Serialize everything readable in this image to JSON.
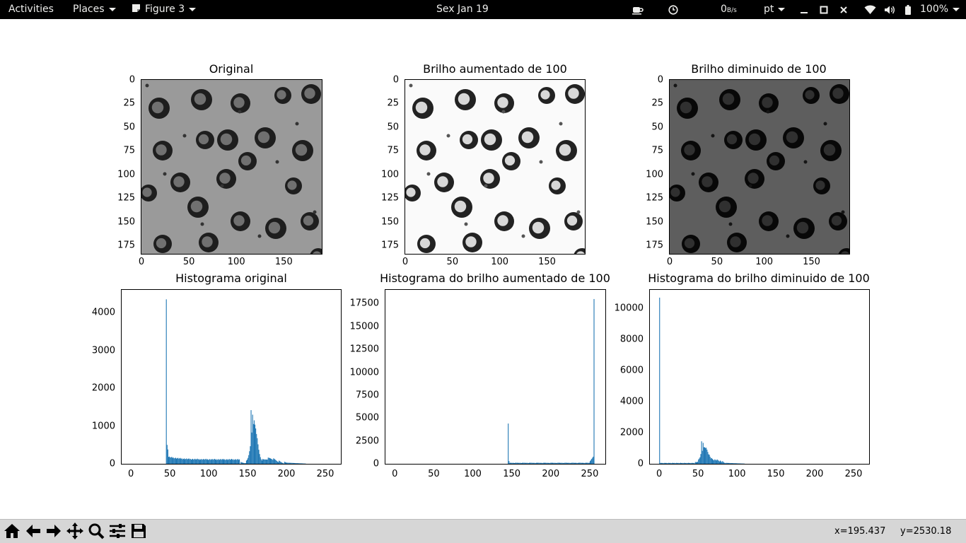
{
  "topbar": {
    "activities": "Activities",
    "places": "Places",
    "app_menu": "Figure 3",
    "clock": "Sex Jan 19",
    "net_speed": "0",
    "net_unit": "B/s",
    "keyboard": "pt",
    "battery": "100%",
    "icons": [
      "coffee-icon",
      "clock-icon",
      "minimize-icon",
      "maximize-icon",
      "close-icon",
      "wifi-icon",
      "volume-icon",
      "battery-icon"
    ]
  },
  "panels": {
    "original": {
      "title": "Original"
    },
    "bright": {
      "title": "Brilho aumentado de 100"
    },
    "dark": {
      "title": "Brilho diminuido de 100"
    },
    "hist_original": {
      "title": "Histograma original"
    },
    "hist_bright": {
      "title": "Histograma do brilho aumentado de 100"
    },
    "hist_dark": {
      "title": "Histograma do brilho diminuido de 100"
    }
  },
  "image_axes": {
    "x_ticks": [
      "0",
      "50",
      "100",
      "150"
    ],
    "y_ticks": [
      "0",
      "25",
      "50",
      "75",
      "100",
      "125",
      "150",
      "175"
    ]
  },
  "hist_axes": {
    "x_ticks": [
      "0",
      "50",
      "100",
      "150",
      "200",
      "250"
    ],
    "original_y_ticks": [
      "0",
      "1000",
      "2000",
      "3000",
      "4000"
    ],
    "bright_y_ticks": [
      "0",
      "2500",
      "5000",
      "7500",
      "10000",
      "12500",
      "15000",
      "17500"
    ],
    "dark_y_ticks": [
      "0",
      "2000",
      "4000",
      "6000",
      "8000",
      "10000"
    ]
  },
  "chart_data": [
    {
      "type": "bar",
      "title": "Histograma original",
      "xlim": [
        -12,
        270
      ],
      "ylim": [
        0,
        4600
      ],
      "peaks": [
        [
          45,
          4350
        ],
        [
          47,
          500
        ],
        [
          154,
          1420
        ],
        [
          160,
          1100
        ],
        [
          175,
          200
        ]
      ],
      "color": "#1f77b4"
    },
    {
      "type": "bar",
      "title": "Histograma do brilho aumentado de 100",
      "xlim": [
        -12,
        270
      ],
      "ylim": [
        0,
        19000
      ],
      "peaks": [
        [
          145,
          4400
        ],
        [
          147,
          600
        ],
        [
          254,
          600
        ],
        [
          255,
          18000
        ]
      ],
      "color": "#1f77b4"
    },
    {
      "type": "bar",
      "title": "Histograma do brilho diminuido de 100",
      "xlim": [
        -12,
        270
      ],
      "ylim": [
        0,
        11200
      ],
      "peaks": [
        [
          0,
          10700
        ],
        [
          54,
          1450
        ],
        [
          60,
          1100
        ],
        [
          75,
          200
        ]
      ],
      "color": "#1f77b4"
    }
  ],
  "toolbar": {
    "buttons": [
      "home-icon",
      "back-icon",
      "forward-icon",
      "pan-icon",
      "zoom-icon",
      "configure-icon",
      "save-icon"
    ],
    "x_readout": "x=195.437",
    "y_readout": "y=2530.18"
  },
  "colors": {
    "bar": "#1f77b4",
    "topbar": "#000000",
    "toolbar": "#d6d6d6"
  }
}
